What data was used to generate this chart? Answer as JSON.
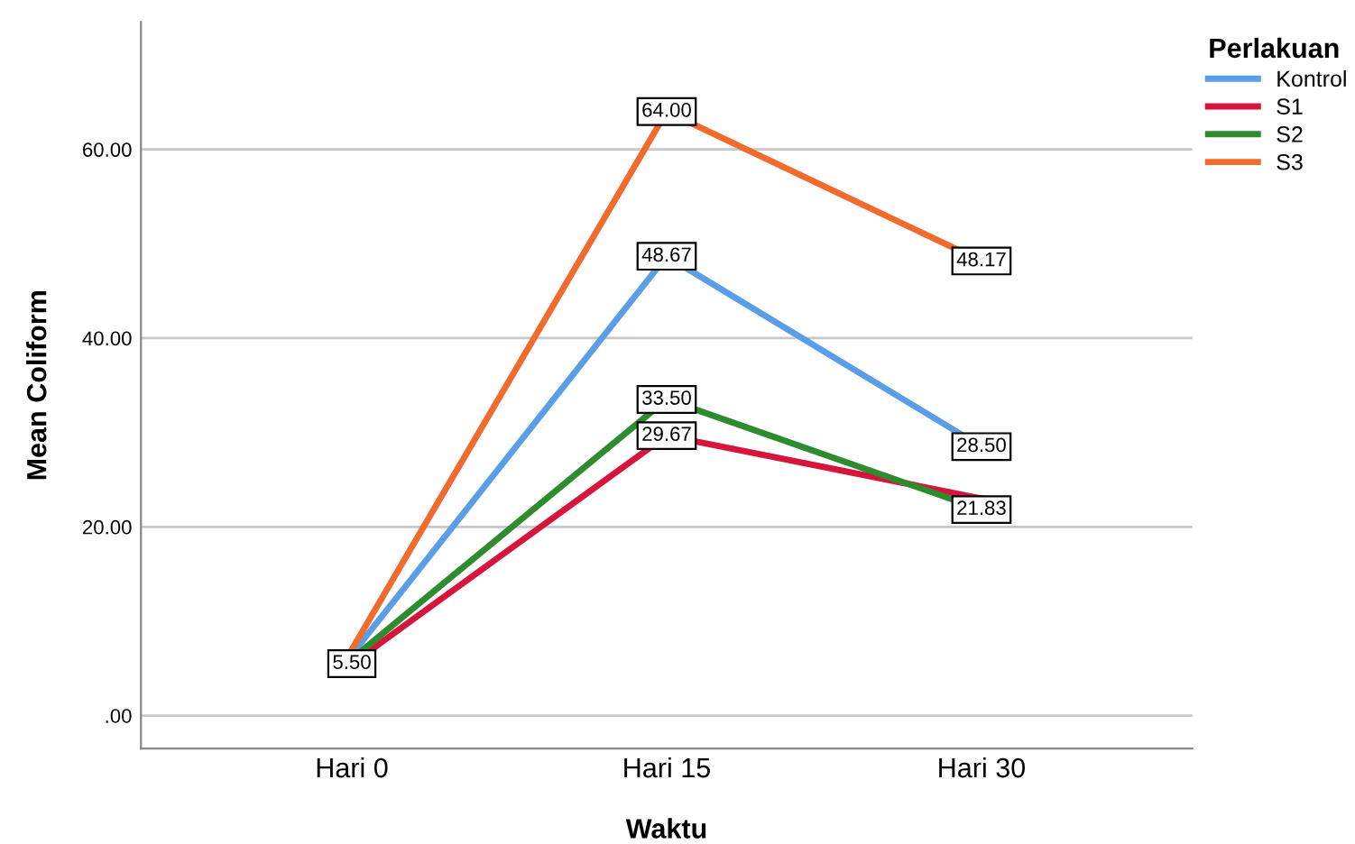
{
  "chart_data": {
    "type": "line",
    "xlabel": "Waktu",
    "ylabel": "Mean Coliform",
    "legend_title": "Perlakuan",
    "categories": [
      "Hari 0",
      "Hari 15",
      "Hari 30"
    ],
    "series": [
      {
        "name": "Kontrol",
        "color": "#5b9ee8",
        "values": [
          6.5,
          48.67,
          28.5
        ],
        "value_labels": [
          null,
          "48.67",
          "28.50"
        ]
      },
      {
        "name": "S1",
        "color": "#d7143c",
        "values": [
          5.5,
          29.67,
          23
        ],
        "value_labels": [
          "5.50",
          "29.67",
          null
        ]
      },
      {
        "name": "S2",
        "color": "#2e8b2e",
        "values": [
          6,
          33.5,
          21.83
        ],
        "value_labels": [
          null,
          "33.50",
          "21.83"
        ]
      },
      {
        "name": "S3",
        "color": "#f26b2e",
        "values": [
          7,
          64.0,
          48.17
        ],
        "value_labels": [
          null,
          "64.00",
          "48.17"
        ]
      }
    ],
    "ylim": [
      -3.5,
      73.5
    ],
    "yticks": [
      {
        "value": 0,
        "label": ".00"
      },
      {
        "value": 20,
        "label": "20.00"
      },
      {
        "value": 40,
        "label": "40.00"
      },
      {
        "value": 60,
        "label": "60.00"
      }
    ],
    "grid": "y",
    "legend": "top right",
    "line_style": "solid"
  }
}
